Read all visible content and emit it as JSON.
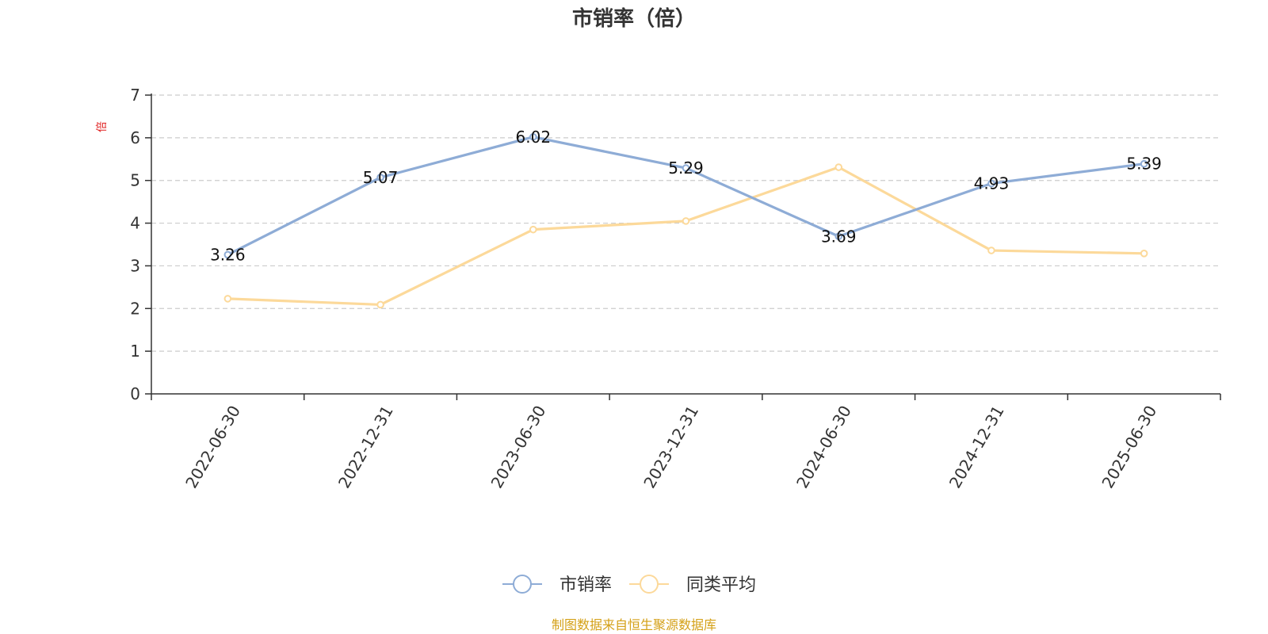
{
  "chart_data": {
    "type": "line",
    "title": "市销率（倍）",
    "ylabel": "倍",
    "xlabel": "",
    "categories": [
      "2022-06-30",
      "2022-12-31",
      "2023-06-30",
      "2023-12-31",
      "2024-06-30",
      "2024-12-31",
      "2025-06-30"
    ],
    "ylim": [
      0,
      7
    ],
    "yticks": [
      "0",
      "1",
      "2",
      "3",
      "4",
      "5",
      "6",
      "7"
    ],
    "grid": true,
    "legend_position": "bottom-center",
    "series": [
      {
        "name": "市销率",
        "values": [
          3.26,
          5.07,
          6.02,
          5.29,
          3.69,
          4.93,
          5.39
        ],
        "labels": [
          "3.26",
          "5.07",
          "6.02",
          "5.29",
          "3.69",
          "4.93",
          "5.39"
        ],
        "color": "#8eacd6"
      },
      {
        "name": "同类平均",
        "values": [
          2.23,
          2.09,
          3.85,
          4.05,
          5.31,
          3.36,
          3.29
        ],
        "color": "#fcd99a"
      }
    ],
    "source": "制图数据来自恒生聚源数据库",
    "colors": {
      "axis": "#333333",
      "grid": "#cccccc",
      "ylabel": "#e02020",
      "source": "#d4a017"
    }
  }
}
